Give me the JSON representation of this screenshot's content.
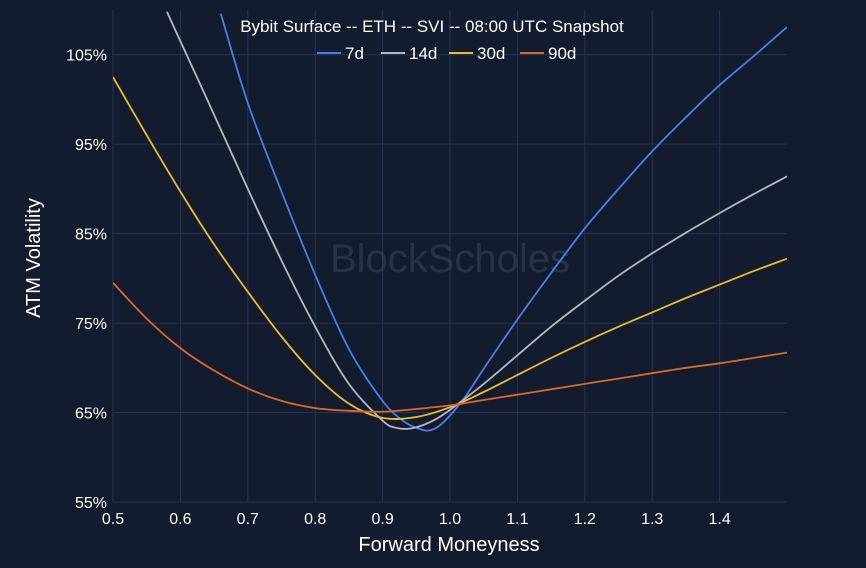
{
  "chart_data": {
    "type": "line",
    "title": "Bybit Surface -- ETH -- SVI -- 08:00 UTC Snapshot",
    "xlabel": "Forward Moneyness",
    "ylabel": "ATM Volatility",
    "xlim": [
      0.5,
      1.5
    ],
    "ylim": [
      55,
      110
    ],
    "x_ticks": [
      0.5,
      0.6,
      0.7,
      0.8,
      0.9,
      1.0,
      1.1,
      1.2,
      1.3,
      1.4
    ],
    "x_tick_labels": [
      "0.5",
      "0.6",
      "0.7",
      "0.8",
      "0.9",
      "1.0",
      "1.1",
      "1.2",
      "1.3",
      "1.4"
    ],
    "y_ticks": [
      55,
      65,
      75,
      85,
      95,
      105
    ],
    "y_tick_labels": [
      "55%",
      "65%",
      "75%",
      "85%",
      "95%",
      "105%"
    ],
    "grid": true,
    "legend_position": "top-center",
    "watermark": "BlockScholes",
    "series": [
      {
        "name": "7d",
        "color": "#4a7ee8",
        "x": [
          0.66,
          0.7,
          0.75,
          0.8,
          0.85,
          0.9,
          0.93,
          0.95,
          0.97,
          0.99,
          1.02,
          1.05,
          1.1,
          1.15,
          1.2,
          1.25,
          1.3,
          1.35,
          1.4,
          1.45,
          1.5
        ],
        "y": [
          109.6,
          99.6,
          89.7,
          80.4,
          72.1,
          66.3,
          64.1,
          63.3,
          63.0,
          63.9,
          66.5,
          69.9,
          75.4,
          80.6,
          85.6,
          90.0,
          94.2,
          98.0,
          101.6,
          104.8,
          108.1
        ]
      },
      {
        "name": "14d",
        "color": "#b4b8c0",
        "x": [
          0.58,
          0.6,
          0.65,
          0.7,
          0.75,
          0.8,
          0.85,
          0.9,
          0.92,
          0.94,
          0.96,
          0.98,
          1.0,
          1.05,
          1.1,
          1.15,
          1.2,
          1.25,
          1.3,
          1.35,
          1.4,
          1.45,
          1.5
        ],
        "y": [
          109.8,
          106.5,
          98.3,
          90.0,
          82.0,
          74.6,
          68.2,
          64.1,
          63.3,
          63.2,
          63.6,
          64.3,
          65.3,
          68.2,
          71.4,
          74.6,
          77.5,
          80.3,
          82.8,
          85.1,
          87.3,
          89.4,
          91.4
        ]
      },
      {
        "name": "30d",
        "color": "#e9bd30",
        "x": [
          0.5,
          0.55,
          0.6,
          0.65,
          0.7,
          0.75,
          0.8,
          0.85,
          0.9,
          0.95,
          1.0,
          1.05,
          1.1,
          1.15,
          1.2,
          1.25,
          1.3,
          1.35,
          1.4,
          1.45,
          1.5
        ],
        "y": [
          102.5,
          96.0,
          89.7,
          83.8,
          78.5,
          73.5,
          69.2,
          66.0,
          64.4,
          64.5,
          65.6,
          67.3,
          69.2,
          71.1,
          72.9,
          74.6,
          76.2,
          77.8,
          79.3,
          80.8,
          82.2
        ]
      },
      {
        "name": "90d",
        "color": "#d8692b",
        "x": [
          0.5,
          0.55,
          0.6,
          0.65,
          0.7,
          0.75,
          0.8,
          0.85,
          0.9,
          0.95,
          1.0,
          1.05,
          1.1,
          1.15,
          1.2,
          1.25,
          1.3,
          1.35,
          1.4,
          1.45,
          1.5
        ],
        "y": [
          79.5,
          75.5,
          72.2,
          69.7,
          67.7,
          66.3,
          65.5,
          65.2,
          65.1,
          65.4,
          65.8,
          66.4,
          67.0,
          67.6,
          68.2,
          68.8,
          69.4,
          70.0,
          70.5,
          71.1,
          71.7
        ]
      }
    ]
  }
}
